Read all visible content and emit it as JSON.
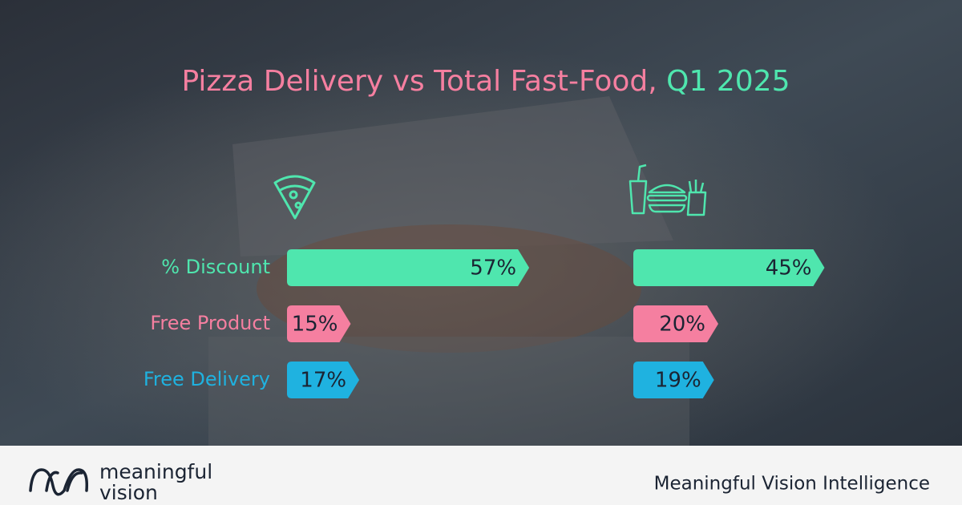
{
  "chart_data": {
    "type": "bar",
    "title": "Pizza Delivery vs Total Fast-Food,",
    "period": "Q1 2025",
    "categories": [
      "% Discount",
      "Free Product",
      "Free Delivery"
    ],
    "colors": [
      "#4fe6ae",
      "#f57fa0",
      "#1fb2e0"
    ],
    "series": [
      {
        "values": [
          57,
          15,
          17
        ],
        "value_labels": [
          "57%",
          "15%",
          "17%"
        ]
      },
      {
        "values": [
          45,
          20,
          19
        ],
        "value_labels": [
          "45%",
          "20%",
          "19%"
        ]
      }
    ]
  },
  "footer": {
    "logo_lines": [
      "meaningful",
      "vision"
    ],
    "tagline": "Meaningful Vision Intelligence"
  }
}
